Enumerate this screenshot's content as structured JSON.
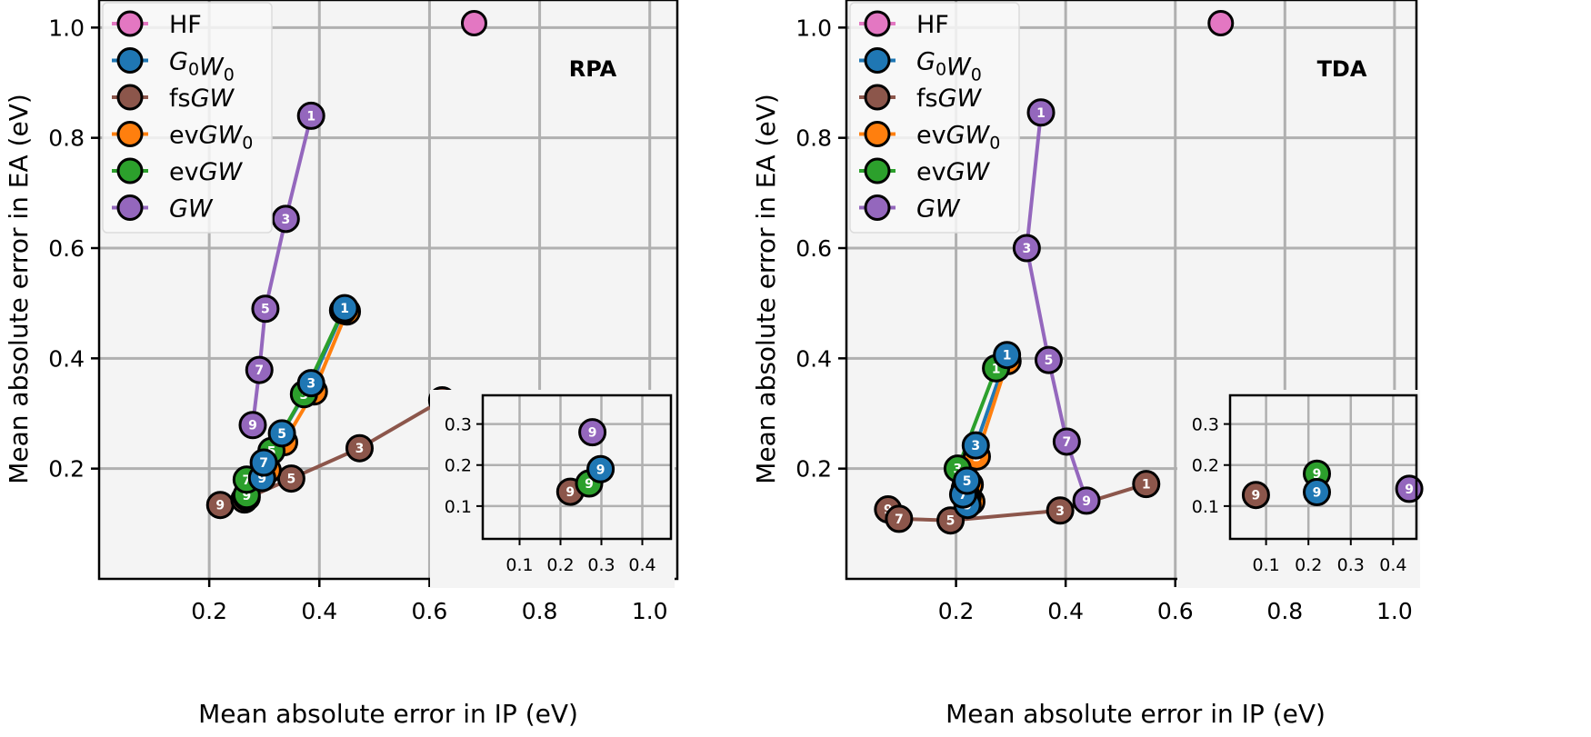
{
  "chart_data": [
    {
      "type": "line",
      "panel_tag": "RPA",
      "xlabel": "Mean absolute error in IP (eV)",
      "ylabel": "Mean absolute error in EA (eV)",
      "xlim": [
        0.0,
        1.05
      ],
      "ylim": [
        0.0,
        1.05
      ],
      "xticks": [
        0.2,
        0.4,
        0.6,
        0.8,
        1.0
      ],
      "xtick_labels": [
        "0.2",
        "0.4",
        "0.6",
        "0.8",
        "1.0"
      ],
      "yticks": [
        0.2,
        0.4,
        0.6,
        0.8,
        1.0
      ],
      "ytick_labels": [
        "0.2",
        "0.4",
        "0.6",
        "0.8",
        "1.0"
      ],
      "grid": true,
      "legend_position": "top-left",
      "series": [
        {
          "name": "HF",
          "color": "#e377c2",
          "points": [
            {
              "x": 0.681,
              "y": 1.008,
              "label": ""
            }
          ]
        },
        {
          "name": "G0W0",
          "color": "#1f77b4",
          "points": [
            {
              "x": 0.446,
              "y": 0.491,
              "label": "1"
            },
            {
              "x": 0.385,
              "y": 0.355,
              "label": "3"
            },
            {
              "x": 0.332,
              "y": 0.264,
              "label": "5"
            },
            {
              "x": 0.299,
              "y": 0.211,
              "label": "7"
            },
            {
              "x": 0.296,
              "y": 0.183,
              "label": "9"
            }
          ]
        },
        {
          "name": "fsGW",
          "color": "#8c564b",
          "points": [
            {
              "x": 0.623,
              "y": 0.324,
              "label": "1"
            },
            {
              "x": 0.473,
              "y": 0.237,
              "label": "3"
            },
            {
              "x": 0.349,
              "y": 0.182,
              "label": "5"
            },
            {
              "x": 0.264,
              "y": 0.144,
              "label": "7"
            },
            {
              "x": 0.22,
              "y": 0.134,
              "label": "9"
            }
          ]
        },
        {
          "name": "evGW0",
          "color": "#ff7f0e",
          "points": [
            {
              "x": 0.45,
              "y": 0.485,
              "label": "1"
            },
            {
              "x": 0.39,
              "y": 0.34,
              "label": "3"
            },
            {
              "x": 0.336,
              "y": 0.248,
              "label": "5"
            },
            {
              "x": 0.306,
              "y": 0.197,
              "label": "7"
            },
            {
              "x": 0.268,
              "y": 0.148,
              "label": "9"
            }
          ]
        },
        {
          "name": "evGW",
          "color": "#2ca02c",
          "points": [
            {
              "x": 0.443,
              "y": 0.487,
              "label": "1"
            },
            {
              "x": 0.372,
              "y": 0.335,
              "label": "3"
            },
            {
              "x": 0.313,
              "y": 0.232,
              "label": "5"
            },
            {
              "x": 0.268,
              "y": 0.18,
              "label": "7"
            },
            {
              "x": 0.268,
              "y": 0.152,
              "label": "9"
            }
          ]
        },
        {
          "name": "GW",
          "color": "#9467bd",
          "points": [
            {
              "x": 0.385,
              "y": 0.84,
              "label": "1"
            },
            {
              "x": 0.339,
              "y": 0.653,
              "label": "3"
            },
            {
              "x": 0.302,
              "y": 0.49,
              "label": "5"
            },
            {
              "x": 0.291,
              "y": 0.379,
              "label": "7"
            },
            {
              "x": 0.279,
              "y": 0.279,
              "label": "9"
            }
          ]
        }
      ],
      "inset": {
        "xlim": [
          0.01,
          0.47
        ],
        "ylim": [
          0.02,
          0.37
        ],
        "xticks": [
          0.1,
          0.2,
          0.3,
          0.4
        ],
        "xtick_labels": [
          "0.1",
          "0.2",
          "0.3",
          "0.4"
        ],
        "yticks": [
          0.1,
          0.2,
          0.3
        ],
        "ytick_labels": [
          "0.1",
          "0.2",
          "0.3"
        ],
        "points": [
          {
            "series": "GW",
            "x": 0.278,
            "y": 0.28,
            "label": "9"
          },
          {
            "series": "fsGW",
            "x": 0.224,
            "y": 0.135,
            "label": "9"
          },
          {
            "series": "evGW",
            "x": 0.27,
            "y": 0.155,
            "label": "9"
          },
          {
            "series": "G0W0",
            "x": 0.298,
            "y": 0.19,
            "label": "9"
          }
        ]
      }
    },
    {
      "type": "line",
      "panel_tag": "TDA",
      "xlabel": "Mean absolute error in IP (eV)",
      "ylabel": "Mean absolute error in EA (eV)",
      "xlim": [
        0.0,
        1.04
      ],
      "ylim": [
        0.0,
        1.05
      ],
      "xticks": [
        0.2,
        0.4,
        0.6,
        0.8,
        1.0
      ],
      "xtick_labels": [
        "0.2",
        "0.4",
        "0.6",
        "0.8",
        "1.0"
      ],
      "yticks": [
        0.2,
        0.4,
        0.6,
        0.8,
        1.0
      ],
      "ytick_labels": [
        "0.2",
        "0.4",
        "0.6",
        "0.8",
        "1.0"
      ],
      "grid": true,
      "legend_position": "top-left",
      "series": [
        {
          "name": "HF",
          "color": "#e377c2",
          "points": [
            {
              "x": 0.683,
              "y": 1.008,
              "label": ""
            }
          ]
        },
        {
          "name": "G0W0",
          "color": "#1f77b4",
          "points": [
            {
              "x": 0.293,
              "y": 0.406,
              "label": "1"
            },
            {
              "x": 0.236,
              "y": 0.242,
              "label": "3"
            },
            {
              "x": 0.22,
              "y": 0.178,
              "label": "5"
            },
            {
              "x": 0.213,
              "y": 0.153,
              "label": "7"
            },
            {
              "x": 0.221,
              "y": 0.134,
              "label": "9"
            }
          ]
        },
        {
          "name": "fsGW",
          "color": "#8c564b",
          "points": [
            {
              "x": 0.547,
              "y": 0.172,
              "label": "1"
            },
            {
              "x": 0.39,
              "y": 0.124,
              "label": "3"
            },
            {
              "x": 0.19,
              "y": 0.106,
              "label": "5"
            },
            {
              "x": 0.096,
              "y": 0.109,
              "label": "7"
            },
            {
              "x": 0.076,
              "y": 0.126,
              "label": "9"
            }
          ]
        },
        {
          "name": "evGW0",
          "color": "#ff7f0e",
          "points": [
            {
              "x": 0.294,
              "y": 0.395,
              "label": "1"
            },
            {
              "x": 0.238,
              "y": 0.222,
              "label": "3"
            },
            {
              "x": 0.225,
              "y": 0.171,
              "label": "5"
            },
            {
              "x": 0.221,
              "y": 0.148,
              "label": "7"
            },
            {
              "x": 0.228,
              "y": 0.14,
              "label": "9"
            }
          ]
        },
        {
          "name": "evGW",
          "color": "#2ca02c",
          "points": [
            {
              "x": 0.273,
              "y": 0.382,
              "label": "1"
            },
            {
              "x": 0.203,
              "y": 0.2,
              "label": "3"
            },
            {
              "x": 0.216,
              "y": 0.164,
              "label": "5"
            },
            {
              "x": 0.218,
              "y": 0.153,
              "label": "7"
            },
            {
              "x": 0.218,
              "y": 0.179,
              "label": "9"
            }
          ]
        },
        {
          "name": "GW",
          "color": "#9467bd",
          "points": [
            {
              "x": 0.355,
              "y": 0.846,
              "label": "1"
            },
            {
              "x": 0.329,
              "y": 0.6,
              "label": "3"
            },
            {
              "x": 0.369,
              "y": 0.397,
              "label": "5"
            },
            {
              "x": 0.402,
              "y": 0.249,
              "label": "7"
            },
            {
              "x": 0.438,
              "y": 0.142,
              "label": "9"
            }
          ]
        }
      ],
      "inset": {
        "xlim": [
          0.015,
          0.455
        ],
        "ylim": [
          0.02,
          0.37
        ],
        "xticks": [
          0.1,
          0.2,
          0.3,
          0.4
        ],
        "xtick_labels": [
          "0.1",
          "0.2",
          "0.3",
          "0.4"
        ],
        "yticks": [
          0.1,
          0.2,
          0.3
        ],
        "ytick_labels": [
          "0.1",
          "0.2",
          "0.3"
        ],
        "points": [
          {
            "series": "fsGW",
            "x": 0.076,
            "y": 0.127,
            "label": "9"
          },
          {
            "series": "evGW",
            "x": 0.22,
            "y": 0.179,
            "label": "9"
          },
          {
            "series": "G0W0",
            "x": 0.22,
            "y": 0.134,
            "label": "9"
          },
          {
            "series": "GW",
            "x": 0.438,
            "y": 0.142,
            "label": "9"
          }
        ]
      }
    }
  ],
  "legend": {
    "entries": [
      {
        "key": "HF",
        "color": "#e377c2",
        "parts": [
          {
            "t": "HF",
            "i": false
          }
        ]
      },
      {
        "key": "G0W0",
        "color": "#1f77b4",
        "parts": [
          {
            "t": "G",
            "i": true
          },
          {
            "t": "0",
            "sub": true
          },
          {
            "t": "W",
            "i": true
          },
          {
            "t": "0",
            "sub": true
          }
        ]
      },
      {
        "key": "fsGW",
        "color": "#8c564b",
        "parts": [
          {
            "t": "fs",
            "i": false
          },
          {
            "t": "GW",
            "i": true
          }
        ]
      },
      {
        "key": "evGW0",
        "color": "#ff7f0e",
        "parts": [
          {
            "t": "ev",
            "i": false
          },
          {
            "t": "GW",
            "i": true
          },
          {
            "t": "0",
            "sub": true
          }
        ]
      },
      {
        "key": "evGW",
        "color": "#2ca02c",
        "parts": [
          {
            "t": "ev",
            "i": false
          },
          {
            "t": "GW",
            "i": true
          }
        ]
      },
      {
        "key": "GW",
        "color": "#9467bd",
        "parts": [
          {
            "t": "GW",
            "i": true
          }
        ]
      }
    ]
  },
  "style": {
    "axes_bg": "#f4f4f4",
    "grid_color": "#b0b0b0",
    "marker_edge": "#000000"
  }
}
